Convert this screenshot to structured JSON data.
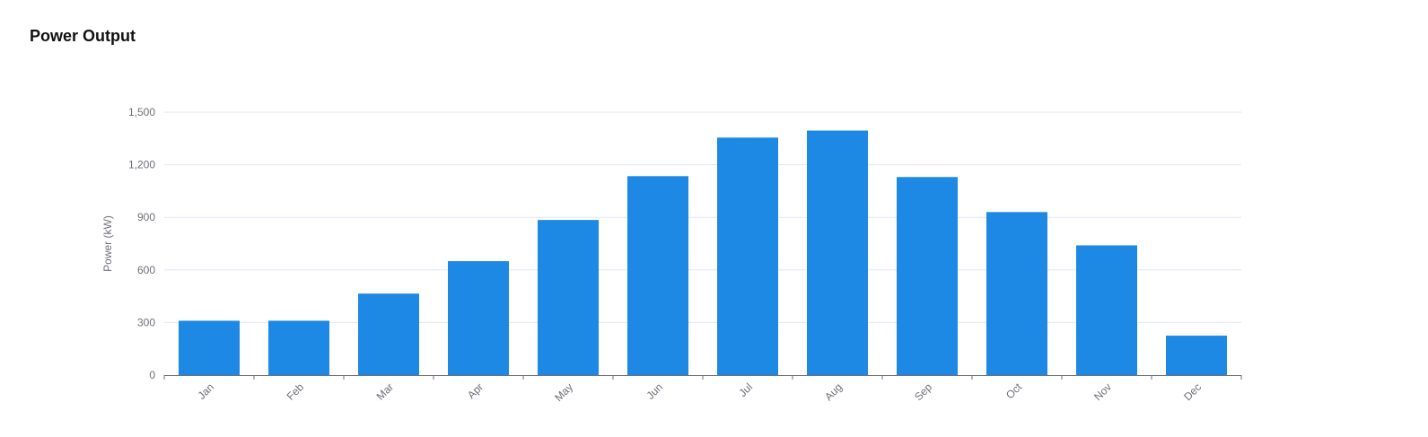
{
  "chart_data": {
    "type": "bar",
    "title": "Power Output",
    "xlabel": "",
    "ylabel": "Power (kW)",
    "categories": [
      "Jan",
      "Feb",
      "Mar",
      "Apr",
      "May",
      "Jun",
      "Jul",
      "Aug",
      "Sep",
      "Oct",
      "Nov",
      "Dec"
    ],
    "values": [
      310,
      310,
      465,
      650,
      885,
      1135,
      1355,
      1395,
      1130,
      930,
      740,
      225
    ],
    "ylim": [
      0,
      1500
    ],
    "yticks": [
      0,
      300,
      600,
      900,
      1200,
      1500
    ],
    "ytick_labels": [
      "0",
      "300",
      "600",
      "900",
      "1,200",
      "1,500"
    ],
    "grid": true,
    "legend": "none",
    "colors": {
      "bar": "#1e88e5",
      "grid": "#e0e6f1",
      "axis": "#6e7079"
    }
  }
}
